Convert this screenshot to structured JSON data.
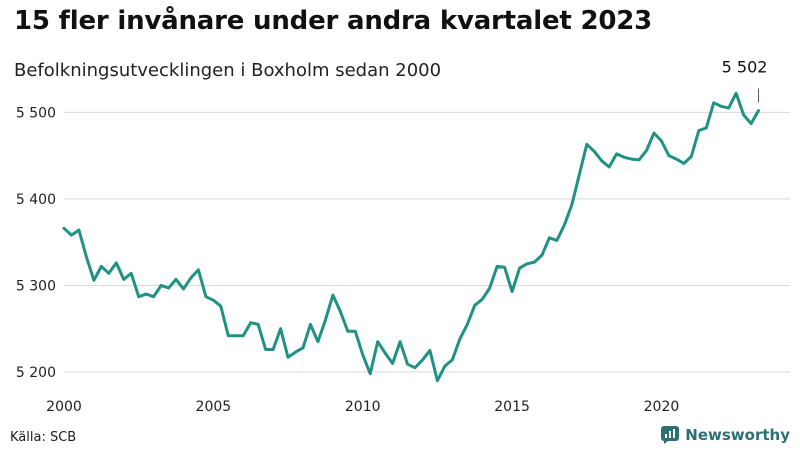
{
  "title": "15 fler invånare under andra kvartalet 2023",
  "subtitle": "Befolkningsutvecklingen i Boxholm sedan 2000",
  "source": "Källa: SCB",
  "brand": "Newsworthy",
  "colors": {
    "line": "#1f9283",
    "grid": "#d9d9d9",
    "brand": "#2e6f73"
  },
  "chart_data": {
    "type": "line",
    "x_start": 2000.0,
    "x_step": 0.25,
    "values": [
      5366,
      5358,
      5364,
      5333,
      5306,
      5322,
      5314,
      5326,
      5307,
      5314,
      5287,
      5290,
      5287,
      5300,
      5297,
      5307,
      5296,
      5309,
      5318,
      5287,
      5283,
      5276,
      5242,
      5242,
      5242,
      5257,
      5255,
      5226,
      5226,
      5250,
      5217,
      5223,
      5228,
      5255,
      5235,
      5260,
      5289,
      5270,
      5247,
      5247,
      5220,
      5198,
      5235,
      5222,
      5210,
      5235,
      5209,
      5205,
      5214,
      5225,
      5190,
      5207,
      5214,
      5238,
      5255,
      5277,
      5284,
      5297,
      5322,
      5321,
      5293,
      5320,
      5325,
      5327,
      5335,
      5355,
      5352,
      5370,
      5393,
      5428,
      5463,
      5455,
      5444,
      5437,
      5452,
      5448,
      5446,
      5445,
      5456,
      5476,
      5467,
      5450,
      5446,
      5441,
      5449,
      5479,
      5482,
      5511,
      5507,
      5505,
      5522,
      5497,
      5487,
      5502
    ],
    "xlim": [
      2000,
      2023.5
    ],
    "ylim": [
      5185,
      5520
    ],
    "x_ticks": [
      2000,
      2005,
      2010,
      2015,
      2020
    ],
    "x_tick_labels": [
      "2000",
      "2005",
      "2010",
      "2015",
      "2020"
    ],
    "y_ticks": [
      5200,
      5300,
      5400,
      5500
    ],
    "y_tick_labels": [
      "5 200",
      "5 300",
      "5 400",
      "5 500"
    ],
    "grid": "horizontal",
    "annotation": {
      "label": "5 502",
      "value": 5502
    }
  }
}
